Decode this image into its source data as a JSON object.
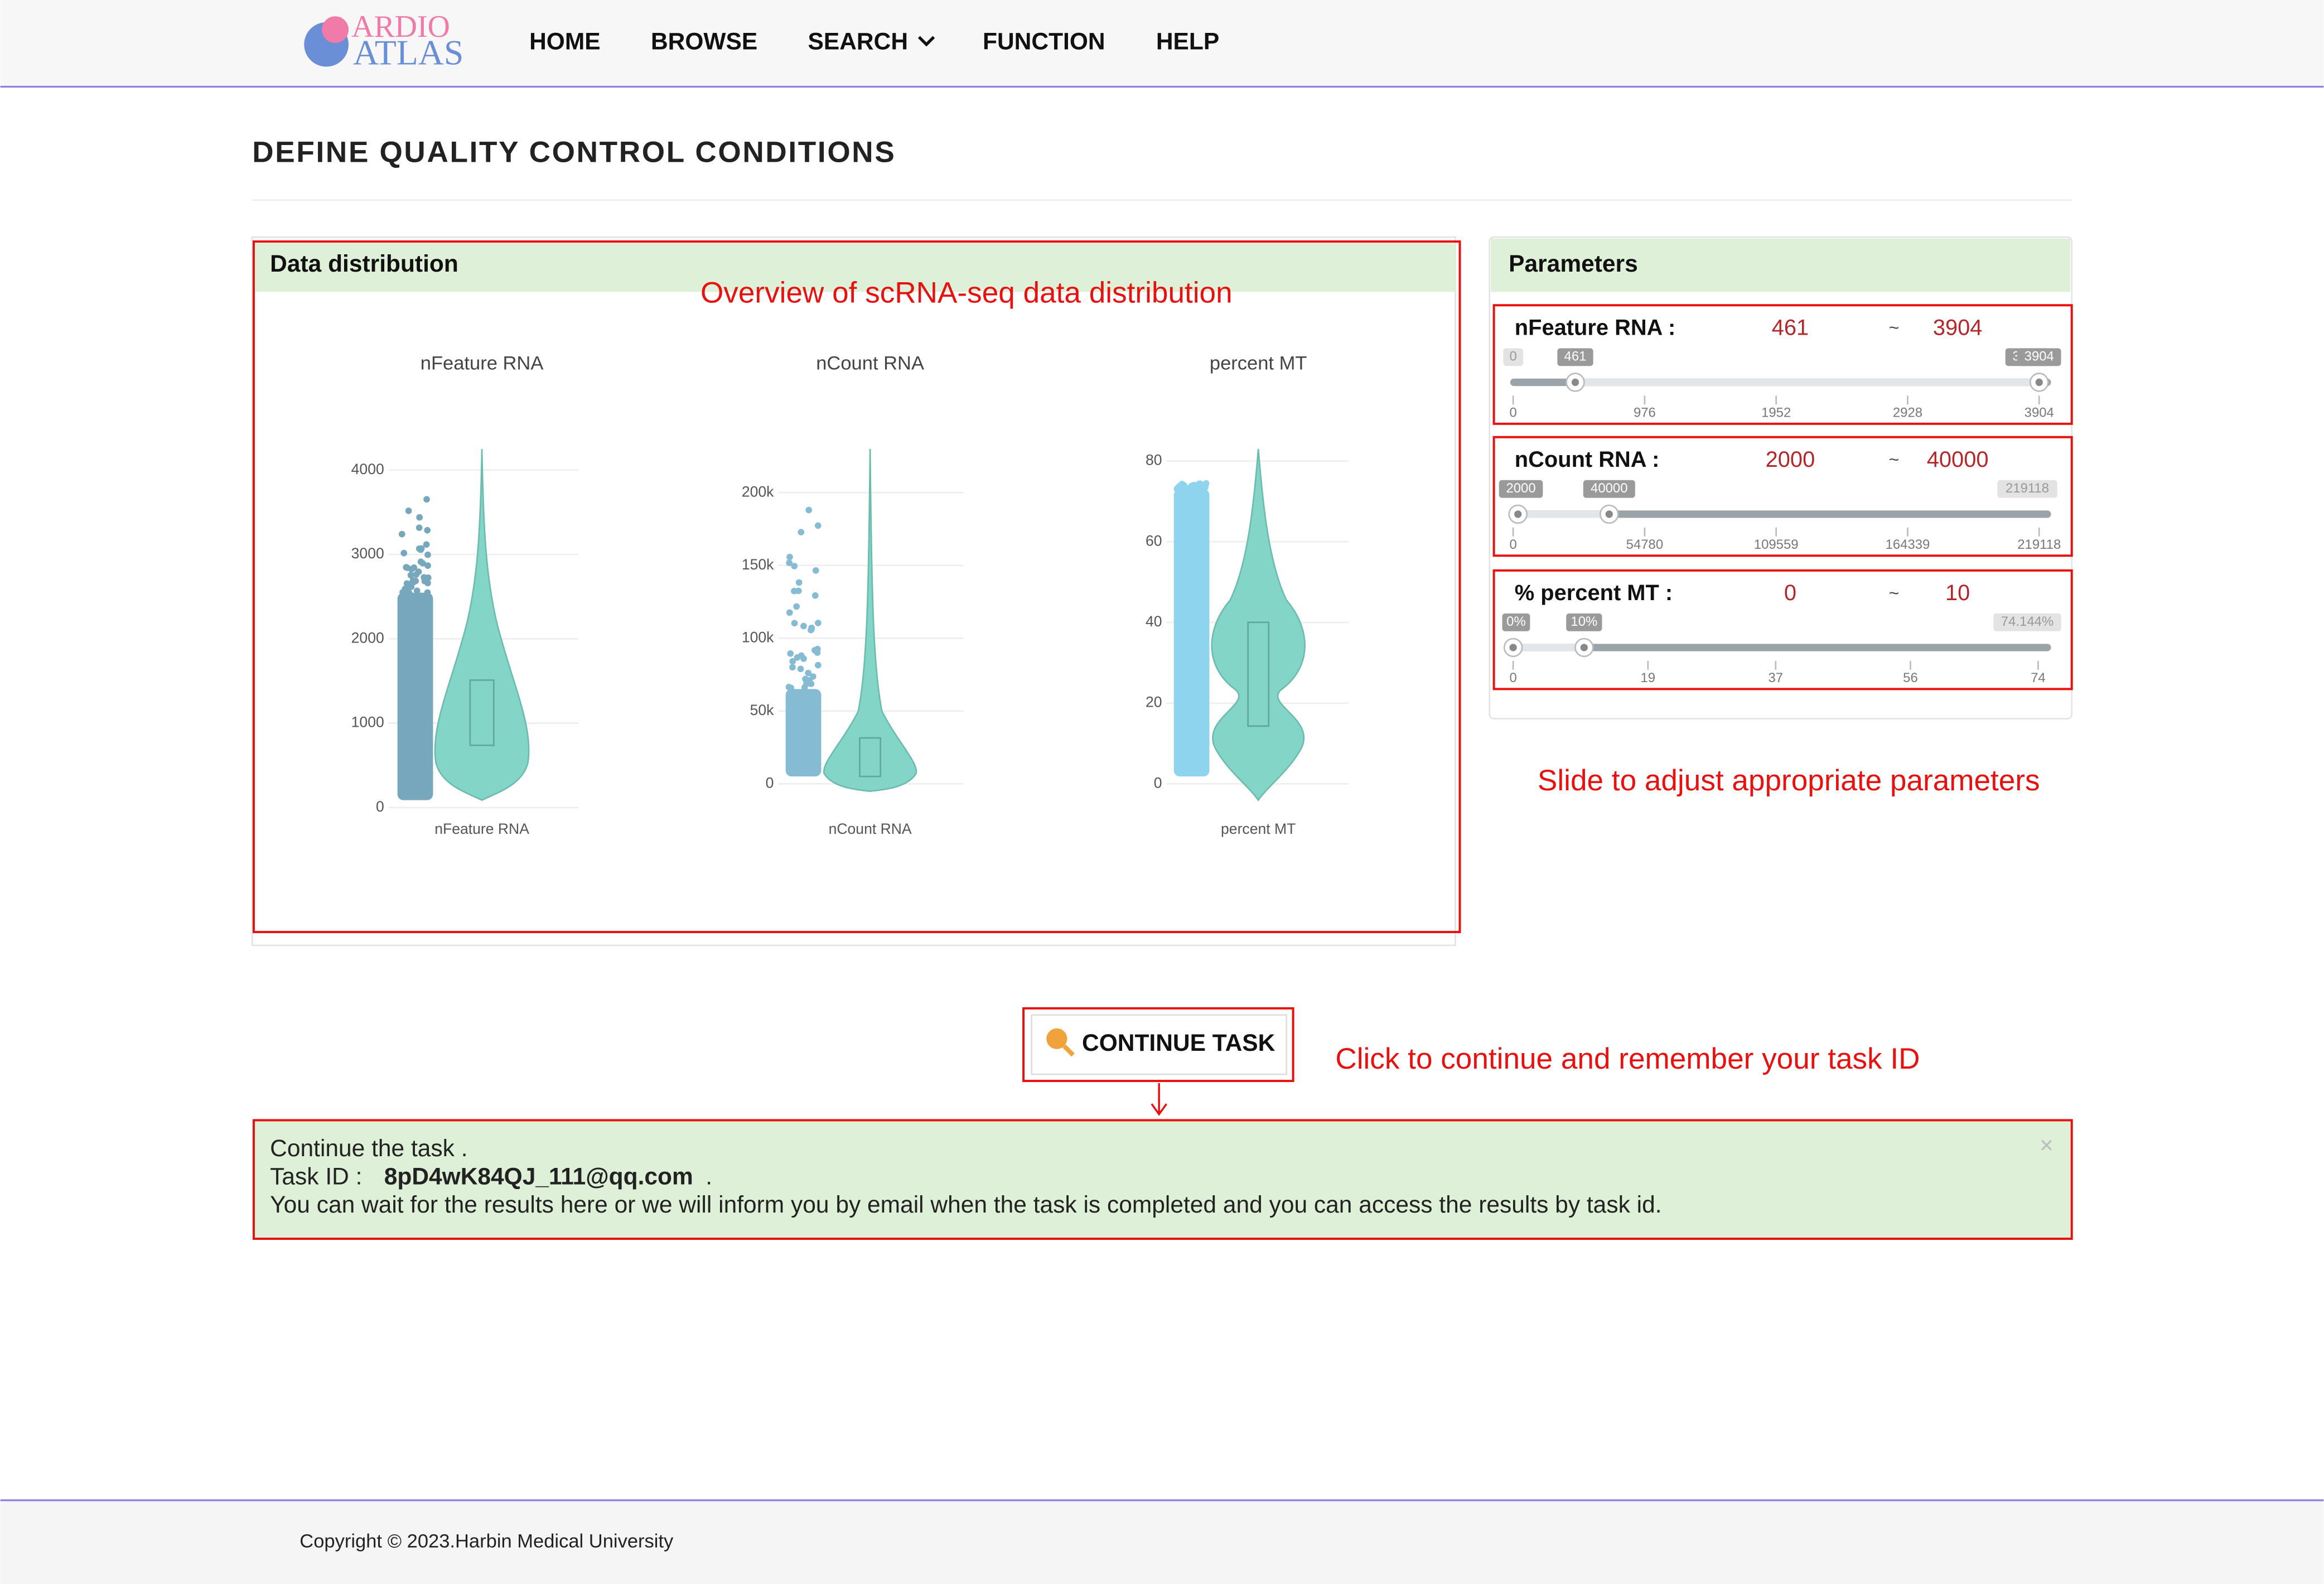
{
  "nav": {
    "logo": [
      "ARDIO",
      "ATLAS"
    ],
    "items": [
      "HOME",
      "BROWSE",
      "SEARCH",
      "FUNCTION",
      "HELP"
    ]
  },
  "page_title": "DEFINE QUALITY CONTROL CONDITIONS",
  "data_panel": {
    "title": "Data distribution",
    "annotation": "Overview of  scRNA-seq data distribution"
  },
  "chart_data": [
    {
      "type": "violin",
      "title": "nFeature RNA",
      "x_label": "nFeature RNA",
      "ylim": [
        0,
        4250
      ],
      "yticks": [
        0,
        1000,
        2000,
        3000,
        4000
      ]
    },
    {
      "type": "violin",
      "title": "nCount RNA",
      "x_label": "nCount RNA",
      "ylim": [
        0,
        230000
      ],
      "yticks": [
        0,
        {
          "value": 50000,
          "label": "50k"
        },
        {
          "value": 100000,
          "label": "100k"
        },
        {
          "value": 150000,
          "label": "150k"
        },
        {
          "value": 200000,
          "label": "200k"
        }
      ]
    },
    {
      "type": "violin",
      "title": "percent MT",
      "x_label": "percent MT",
      "ylim": [
        0,
        83
      ],
      "yticks": [
        0,
        20,
        40,
        60,
        80
      ]
    }
  ],
  "parameters": {
    "title": "Parameters",
    "separator": "~",
    "annotation": "Slide to adjust appropriate parameters",
    "sliders": [
      {
        "label": "nFeature RNA :",
        "low": 461,
        "high": 3904,
        "min": 0,
        "max": 3904,
        "ticks": [
          0,
          976,
          1952,
          2928,
          3904
        ]
      },
      {
        "label": "nCount RNA :",
        "low": 2000,
        "high": 40000,
        "min": 0,
        "max": 219118,
        "ticks": [
          0,
          54780,
          109559,
          164339,
          219118
        ]
      },
      {
        "label": "% percent MT :",
        "low": {
          "value": 0,
          "label": "0%"
        },
        "high": {
          "value": 10,
          "label": "10%"
        },
        "min": 0,
        "max": {
          "value": 74.144,
          "label": "74.144%"
        },
        "ticks": [
          0,
          19,
          37,
          56,
          74
        ]
      }
    ]
  },
  "button": {
    "label": "CONTINUE TASK",
    "annotation": "Click to continue and remember your task ID"
  },
  "message": {
    "line1": "Continue the task .",
    "task_id_label": "Task ID :",
    "task_id": "8pD4wK84QJ_111@qq.com",
    "task_id_end": ".",
    "line3": "You can wait for the results here or we will inform you by email when the task is completed and you can access the results by task id.",
    "close": "×"
  },
  "footer": "Copyright © 2023.Harbin Medical University"
}
